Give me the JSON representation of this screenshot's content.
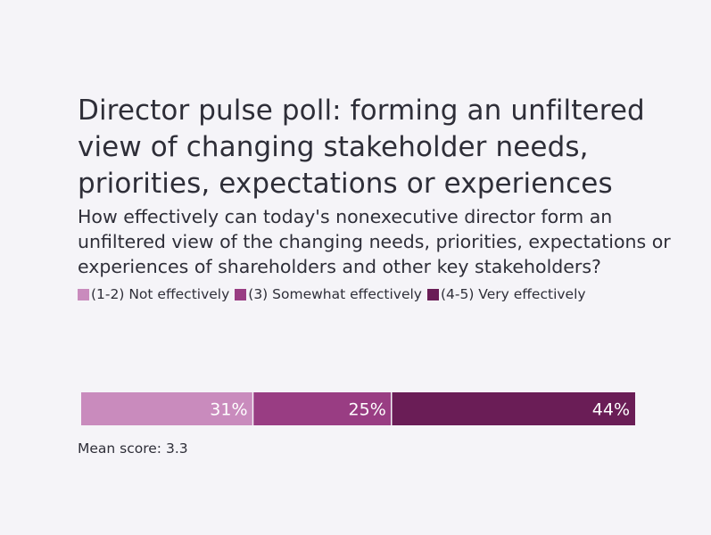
{
  "chart_data": {
    "type": "bar",
    "orientation": "horizontal-stacked-100",
    "title": "Director pulse poll: forming an unfiltered view of changing stakeholder needs, priorities, expectations or experiences",
    "subtitle": "How effectively can today's nonexecutive director form an unfiltered view of the changing needs, priorities, expectations or experiences of shareholders and other key stakeholders?",
    "series": [
      {
        "name": "(1-2) Not effectively",
        "value": 31,
        "label": "31%",
        "color": "#c98bbd"
      },
      {
        "name": "(3) Somewhat effectively",
        "value": 25,
        "label": "25%",
        "color": "#993d83"
      },
      {
        "name": "(4-5) Very effectively",
        "value": 44,
        "label": "44%",
        "color": "#6a1d56"
      }
    ],
    "legend_position": "top-left",
    "annotation": "Mean score: 3.3"
  }
}
